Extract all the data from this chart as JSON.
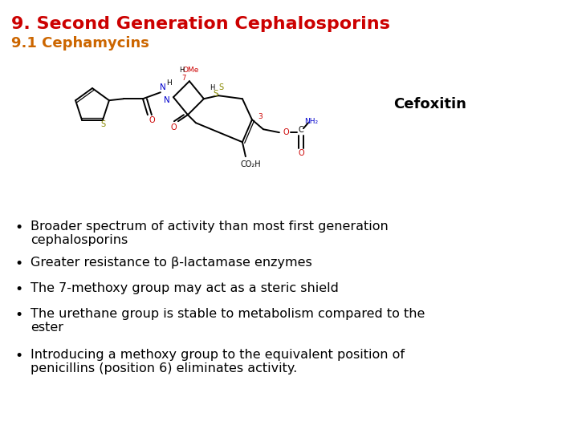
{
  "title": "9. Second Generation Cephalosporins",
  "title_color": "#CC0000",
  "title_fontsize": 16,
  "subtitle": "9.1 Cephamycins",
  "subtitle_color": "#CC6600",
  "subtitle_fontsize": 13,
  "compound_name": "Cefoxitin",
  "compound_name_color": "#000000",
  "compound_name_fontsize": 13,
  "bullet_points": [
    "Broader spectrum of activity than most first generation\ncephalosporins",
    "Greater resistance to β-lactamase enzymes",
    "The 7-methoxy group may act as a steric shield",
    "The urethane group is stable to metabolism compared to the\nester",
    "Introducing a methoxy group to the equivalent position of\npenicillins (position 6) eliminates activity."
  ],
  "bullet_fontsize": 11.5,
  "bullet_color": "#000000",
  "background_color": "#FFFFFF"
}
